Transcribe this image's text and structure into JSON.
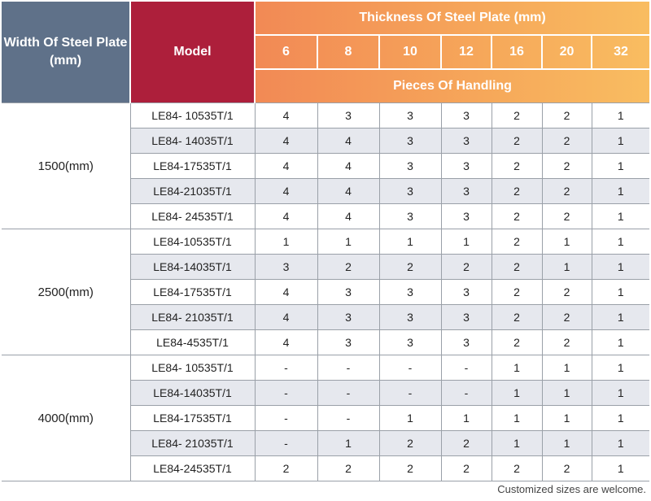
{
  "header": {
    "width_label": "Width Of Steel Plate (mm)",
    "model_label": "Model",
    "thickness_label": "Thickness Of Steel Plate (mm)",
    "thicknesses": [
      "6",
      "8",
      "10",
      "12",
      "16",
      "20",
      "32"
    ],
    "pieces_label": "Pieces Of Handling"
  },
  "groups": [
    {
      "width": "1500(mm)",
      "rows": [
        {
          "model": "LE84- 10535T/1",
          "values": [
            "4",
            "3",
            "3",
            "3",
            "2",
            "2",
            "1"
          ]
        },
        {
          "model": "LE84- 14035T/1",
          "values": [
            "4",
            "4",
            "3",
            "3",
            "2",
            "2",
            "1"
          ]
        },
        {
          "model": "LE84-17535T/1",
          "values": [
            "4",
            "4",
            "3",
            "3",
            "2",
            "2",
            "1"
          ]
        },
        {
          "model": "LE84-21035T/1",
          "values": [
            "4",
            "4",
            "3",
            "3",
            "2",
            "2",
            "1"
          ]
        },
        {
          "model": "LE84- 24535T/1",
          "values": [
            "4",
            "4",
            "3",
            "3",
            "2",
            "2",
            "1"
          ]
        }
      ]
    },
    {
      "width": "2500(mm)",
      "rows": [
        {
          "model": "LE84-10535T/1",
          "values": [
            "1",
            "1",
            "1",
            "1",
            "2",
            "1",
            "1"
          ]
        },
        {
          "model": "LE84-14035T/1",
          "values": [
            "3",
            "2",
            "2",
            "2",
            "2",
            "1",
            "1"
          ]
        },
        {
          "model": "LE84-17535T/1",
          "values": [
            "4",
            "3",
            "3",
            "3",
            "2",
            "2",
            "1"
          ]
        },
        {
          "model": "LE84- 21035T/1",
          "values": [
            "4",
            "3",
            "3",
            "3",
            "2",
            "2",
            "1"
          ]
        },
        {
          "model": "LE84-4535T/1",
          "values": [
            "4",
            "3",
            "3",
            "3",
            "2",
            "2",
            "1"
          ]
        }
      ]
    },
    {
      "width": "4000(mm)",
      "rows": [
        {
          "model": "LE84- 10535T/1",
          "values": [
            "-",
            "-",
            "-",
            "-",
            "1",
            "1",
            "1"
          ]
        },
        {
          "model": "LE84-14035T/1",
          "values": [
            "-",
            "-",
            "-",
            "-",
            "1",
            "1",
            "1"
          ]
        },
        {
          "model": "LE84-17535T/1",
          "values": [
            "-",
            "-",
            "1",
            "1",
            "1",
            "1",
            "1"
          ]
        },
        {
          "model": "LE84- 21035T/1",
          "values": [
            "-",
            "1",
            "2",
            "2",
            "1",
            "1",
            "1"
          ]
        },
        {
          "model": "LE84-24535T/1",
          "values": [
            "2",
            "2",
            "2",
            "2",
            "2",
            "2",
            "1"
          ]
        }
      ]
    }
  ],
  "footnote": "Customized sizes are welcome.",
  "colors": {
    "width_header_bg": "#5f7189",
    "model_header_bg": "#ad1f3b",
    "gradient_start": "#ec6c4f",
    "gradient_end": "#f9bd61",
    "alt_row_bg": "#e6e8ee"
  }
}
